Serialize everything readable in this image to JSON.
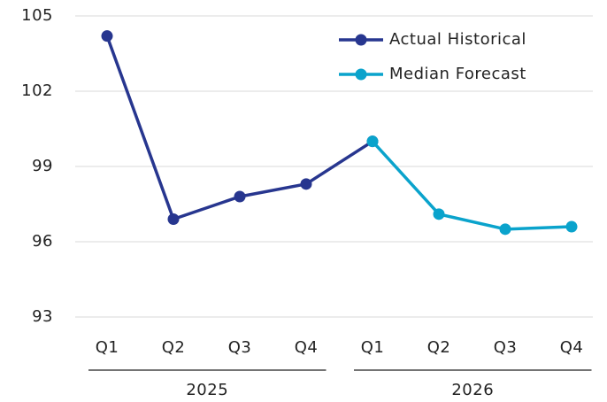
{
  "chart_data": {
    "type": "line",
    "categories": [
      "Q1",
      "Q2",
      "Q3",
      "Q4",
      "Q1",
      "Q2",
      "Q3",
      "Q4"
    ],
    "category_groups": [
      "2025",
      "2026"
    ],
    "series": [
      {
        "name": "Actual Historical",
        "color": "#27368f",
        "values": [
          104.2,
          96.9,
          97.8,
          98.3,
          100.0,
          null,
          null,
          null
        ]
      },
      {
        "name": "Median Forecast",
        "color": "#0aa3cc",
        "values": [
          null,
          null,
          null,
          null,
          100.0,
          97.1,
          96.5,
          96.6
        ]
      }
    ],
    "ylim": [
      93,
      105
    ],
    "yticks": [
      93,
      96,
      99,
      102,
      105
    ],
    "grid": true,
    "legend": "top-right"
  }
}
